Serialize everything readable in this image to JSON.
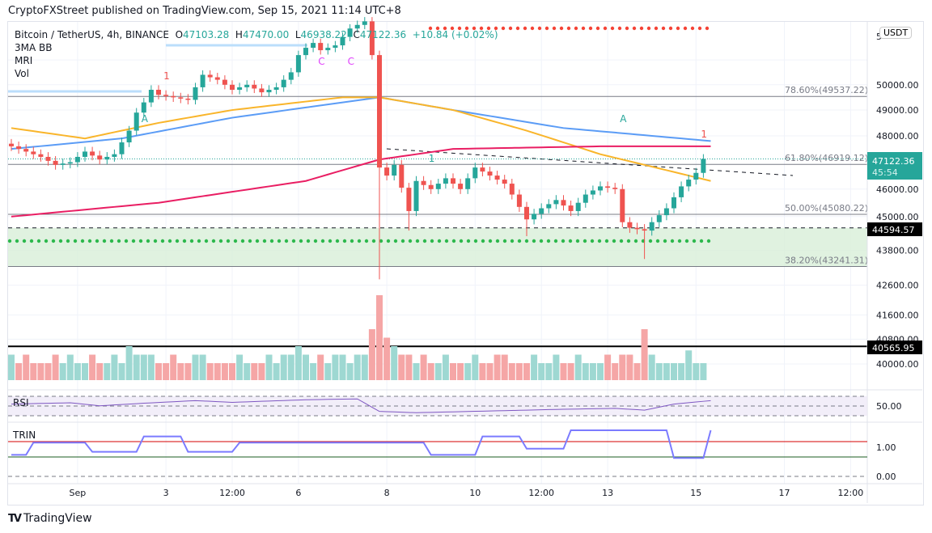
{
  "header": {
    "published": "CryptoFXStreet published on TradingView.com, Sep 15, 2021 11:14 UTC+8"
  },
  "legend": {
    "symbol": "Bitcoin / TetherUS, 4h, BINANCE",
    "o_label": "O",
    "o": "47103.28",
    "h_label": "H",
    "h": "47470.00",
    "l_label": "L",
    "l": "46938.22",
    "c_label": "C",
    "c": "47122.36",
    "change": "+10.84 (+0.02%)",
    "indicators": [
      "3MA BB",
      "MRI",
      "Vol"
    ]
  },
  "currency": "USDT",
  "brand": "TradingView",
  "colors": {
    "up": "#26a69a",
    "down": "#ef5350",
    "ma_blue": "#5b9cf6",
    "ma_orange": "#f9b52b",
    "ma_red": "#e91e63",
    "rsi": "#7e57c2",
    "trin": "#7b7bff"
  },
  "chart_data": {
    "type": "candlestick",
    "title": "Bitcoin / TetherUS, 4h, BINANCE",
    "scale": "log",
    "ylim": [
      40000,
      52400
    ],
    "y_ticks": [
      "51000.00",
      "50000.00",
      "49000.00",
      "48000.00",
      "46000.00",
      "45000.00",
      "43800.00",
      "42600.00",
      "41600.00",
      "40800.00",
      "40000.00"
    ],
    "y_tick_values": [
      51000,
      50000,
      49000,
      48000,
      46000,
      45000,
      43800,
      42600,
      41600,
      40800,
      40000
    ],
    "x_ticks": [
      {
        "label": "Sep",
        "bar": 9
      },
      {
        "label": "3",
        "bar": 21
      },
      {
        "label": "12:00",
        "bar": 30
      },
      {
        "label": "6",
        "bar": 39
      },
      {
        "label": "8",
        "bar": 51
      },
      {
        "label": "10",
        "bar": 63
      },
      {
        "label": "12:00",
        "bar": 72
      },
      {
        "label": "13",
        "bar": 81
      },
      {
        "label": "15",
        "bar": 93
      },
      {
        "label": "17",
        "bar": 105
      },
      {
        "label": "12:00",
        "bar": 114
      }
    ],
    "bar_count": 95,
    "close_keyframes": [
      [
        0,
        47600
      ],
      [
        4,
        47200
      ],
      [
        6,
        46900
      ],
      [
        8,
        47000
      ],
      [
        10,
        47400
      ],
      [
        12,
        47100
      ],
      [
        14,
        47300
      ],
      [
        16,
        48200
      ],
      [
        17,
        48900
      ],
      [
        18,
        49300
      ],
      [
        19,
        49800
      ],
      [
        20,
        49600
      ],
      [
        22,
        49500
      ],
      [
        24,
        49400
      ],
      [
        25,
        49900
      ],
      [
        26,
        50400
      ],
      [
        28,
        50200
      ],
      [
        30,
        49800
      ],
      [
        32,
        50000
      ],
      [
        34,
        49700
      ],
      [
        36,
        49900
      ],
      [
        38,
        50500
      ],
      [
        39,
        51200
      ],
      [
        40,
        51500
      ],
      [
        41,
        51700
      ],
      [
        42,
        51400
      ],
      [
        44,
        51600
      ],
      [
        46,
        52300
      ],
      [
        48,
        52600
      ],
      [
        49,
        51200
      ],
      [
        50,
        46800
      ],
      [
        51,
        46500
      ],
      [
        52,
        46900
      ],
      [
        54,
        45200
      ],
      [
        55,
        46300
      ],
      [
        57,
        46000
      ],
      [
        59,
        46400
      ],
      [
        61,
        46000
      ],
      [
        63,
        46800
      ],
      [
        65,
        46500
      ],
      [
        67,
        46200
      ],
      [
        68,
        45800
      ],
      [
        70,
        44900
      ],
      [
        72,
        45300
      ],
      [
        74,
        45600
      ],
      [
        76,
        45200
      ],
      [
        78,
        45800
      ],
      [
        80,
        46100
      ],
      [
        82,
        46000
      ],
      [
        83,
        44800
      ],
      [
        84,
        44600
      ],
      [
        86,
        44500
      ],
      [
        87,
        44800
      ],
      [
        89,
        45300
      ],
      [
        91,
        46100
      ],
      [
        93,
        46600
      ],
      [
        94,
        47122.36
      ]
    ],
    "low_overrides": [
      [
        50,
        42800
      ],
      [
        54,
        44500
      ],
      [
        70,
        44300
      ],
      [
        86,
        43500
      ]
    ],
    "volume": [
      3,
      2,
      3,
      2,
      2,
      2,
      3,
      2,
      3,
      2,
      2,
      3,
      2,
      2,
      3,
      2,
      4,
      3,
      3,
      3,
      2,
      2,
      3,
      2,
      2,
      3,
      3,
      2,
      2,
      2,
      2,
      3,
      2,
      2,
      2,
      3,
      2,
      3,
      3,
      4,
      3,
      2,
      3,
      2,
      3,
      3,
      2,
      3,
      3,
      6,
      10,
      5,
      4,
      3,
      3,
      2,
      3,
      2,
      2,
      3,
      2,
      2,
      2,
      3,
      2,
      2,
      3,
      3,
      2,
      2,
      2,
      3,
      2,
      2,
      3,
      2,
      2,
      3,
      2,
      2,
      2,
      3,
      2,
      3,
      3,
      2,
      6,
      3,
      2,
      2,
      2,
      2,
      3.5,
      2,
      2
    ],
    "ma": [
      {
        "name": "MA blue",
        "color": "#5b9cf6",
        "keyframes": [
          [
            0,
            47500
          ],
          [
            15,
            47900
          ],
          [
            30,
            48700
          ],
          [
            45,
            49300
          ],
          [
            50,
            49500
          ],
          [
            60,
            49000
          ],
          [
            75,
            48300
          ],
          [
            95,
            47800
          ]
        ]
      },
      {
        "name": "MA orange",
        "color": "#f9b52b",
        "keyframes": [
          [
            0,
            48300
          ],
          [
            10,
            47900
          ],
          [
            20,
            48500
          ],
          [
            30,
            49000
          ],
          [
            45,
            49500
          ],
          [
            50,
            49500
          ],
          [
            60,
            49000
          ],
          [
            70,
            48200
          ],
          [
            80,
            47300
          ],
          [
            95,
            46300
          ]
        ]
      },
      {
        "name": "MA red",
        "color": "#e91e63",
        "keyframes": [
          [
            0,
            45000
          ],
          [
            20,
            45500
          ],
          [
            40,
            46300
          ],
          [
            50,
            47100
          ],
          [
            60,
            47500
          ],
          [
            80,
            47600
          ],
          [
            95,
            47600
          ]
        ]
      }
    ],
    "fib_levels": [
      {
        "label": "78.60%(49537.22)",
        "price": 49537.22
      },
      {
        "label": "61.80%(46919.12)",
        "price": 46919.12
      },
      {
        "label": "50.00%(45080.22)",
        "price": 45080.22
      },
      {
        "label": "38.20%(43241.31)",
        "price": 43241.31
      }
    ],
    "price_labels": {
      "last": "47122.36",
      "countdown": "45:54",
      "support": "44594.57",
      "support_value": 44594.57,
      "low_line": "40565.95",
      "low_line_value": 40565.95
    },
    "markers": [
      {
        "text": "1",
        "bar": 21,
        "color": "#ef5350"
      },
      {
        "text": "A",
        "bar": 18,
        "color": "#26a69a"
      },
      {
        "text": "C",
        "bar": 42,
        "color": "#e040fb"
      },
      {
        "text": "C",
        "bar": 46,
        "color": "#e040fb"
      },
      {
        "text": "1",
        "bar": 57,
        "color": "#26a69a"
      },
      {
        "text": "A",
        "bar": 83,
        "color": "#26a69a"
      },
      {
        "text": "1",
        "bar": 94,
        "color": "#ef5350"
      }
    ],
    "rsi": {
      "label": "RSI",
      "level_label": "50.00",
      "keyframes": [
        [
          0,
          52
        ],
        [
          8,
          55
        ],
        [
          12,
          48
        ],
        [
          18,
          54
        ],
        [
          25,
          60
        ],
        [
          30,
          56
        ],
        [
          40,
          62
        ],
        [
          47,
          64
        ],
        [
          50,
          35
        ],
        [
          55,
          32
        ],
        [
          65,
          36
        ],
        [
          75,
          40
        ],
        [
          82,
          42
        ],
        [
          86,
          38
        ],
        [
          90,
          52
        ],
        [
          95,
          60
        ]
      ]
    },
    "trin": {
      "label": "TRIN",
      "tick_1": "1.00",
      "tick_0": "0.00",
      "keyframes": [
        [
          0,
          0.7
        ],
        [
          2,
          0.7
        ],
        [
          3,
          1.1
        ],
        [
          10,
          1.1
        ],
        [
          11,
          0.8
        ],
        [
          17,
          0.8
        ],
        [
          18,
          1.3
        ],
        [
          23,
          1.3
        ],
        [
          24,
          0.8
        ],
        [
          30,
          0.8
        ],
        [
          31,
          1.1
        ],
        [
          56,
          1.1
        ],
        [
          57,
          0.7
        ],
        [
          63,
          0.7
        ],
        [
          64,
          1.3
        ],
        [
          69,
          1.3
        ],
        [
          70,
          0.9
        ],
        [
          75,
          0.9
        ],
        [
          76,
          1.5
        ],
        [
          89,
          1.5
        ],
        [
          90,
          0.6
        ],
        [
          94,
          0.6
        ],
        [
          95,
          1.5
        ],
        [
          97,
          1.5
        ]
      ]
    }
  }
}
